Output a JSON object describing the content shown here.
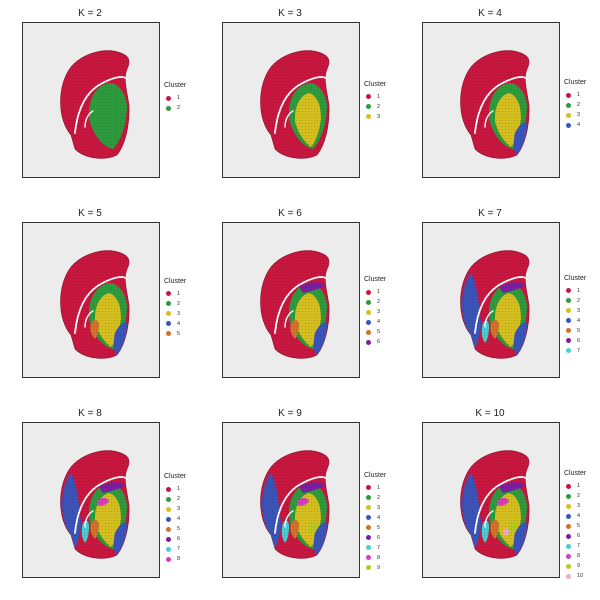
{
  "legend_title": "Cluster",
  "palette": [
    "#c8173f",
    "#2e9a3e",
    "#d4bf1f",
    "#3a54b8",
    "#d0732a",
    "#7a1fa2",
    "#45cfd2",
    "#d23fb8",
    "#b8c81f",
    "#f0a8c8"
  ],
  "panels": [
    {
      "title": "K = 2",
      "clusters": [
        "1",
        "2"
      ]
    },
    {
      "title": "K = 3",
      "clusters": [
        "1",
        "2",
        "3"
      ]
    },
    {
      "title": "K = 4",
      "clusters": [
        "1",
        "2",
        "3",
        "4"
      ]
    },
    {
      "title": "K = 5",
      "clusters": [
        "1",
        "2",
        "3",
        "4",
        "5"
      ]
    },
    {
      "title": "K = 6",
      "clusters": [
        "1",
        "2",
        "3",
        "4",
        "5",
        "6"
      ]
    },
    {
      "title": "K = 7",
      "clusters": [
        "1",
        "2",
        "3",
        "4",
        "5",
        "6",
        "7"
      ]
    },
    {
      "title": "K = 8",
      "clusters": [
        "1",
        "2",
        "3",
        "4",
        "5",
        "6",
        "7",
        "8"
      ]
    },
    {
      "title": "K = 9",
      "clusters": [
        "1",
        "2",
        "3",
        "4",
        "5",
        "6",
        "7",
        "8",
        "9"
      ]
    },
    {
      "title": "K = 10",
      "clusters": [
        "1",
        "2",
        "3",
        "4",
        "5",
        "6",
        "7",
        "8",
        "9",
        "10"
      ]
    }
  ]
}
